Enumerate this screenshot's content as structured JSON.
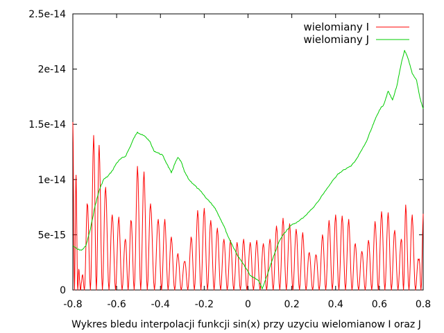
{
  "chart_data": {
    "type": "line",
    "title": "",
    "xlabel": "Wykres bledu interpolacji funkcji sin(x) przy uzyciu wielomianow I oraz J",
    "ylabel": "",
    "xlim": [
      -0.8,
      0.8
    ],
    "ylim": [
      0,
      2.5e-14
    ],
    "xticks": [
      "-0.8",
      "-0.6",
      "-0.4",
      "-0.2",
      "0",
      "0.2",
      "0.4",
      "0.6",
      "0.8"
    ],
    "yticks": [
      "0",
      "5e-15",
      "1e-14",
      "1.5e-14",
      "2e-14",
      "2.5e-14"
    ],
    "xtick_values": [
      -0.8,
      -0.6,
      -0.4,
      -0.2,
      0,
      0.2,
      0.4,
      0.6,
      0.8
    ],
    "ytick_values": [
      0,
      5e-15,
      1e-14,
      1.5e-14,
      2e-14,
      2.5e-14
    ],
    "grid": false,
    "legend_position": "top-right",
    "series": [
      {
        "name": "wielomiany I",
        "color": "#ff0000",
        "style": "oscillating",
        "peaks": [
          [
            -0.8,
            1.52e-14
          ],
          [
            -0.785,
            1.04e-14
          ],
          [
            -0.77,
            1e-15
          ],
          [
            -0.76,
            7e-16
          ],
          [
            -0.735,
            7.8e-15
          ],
          [
            -0.705,
            1.4e-14
          ],
          [
            -0.68,
            1.31e-14
          ],
          [
            -0.65,
            9.3e-15
          ],
          [
            -0.62,
            6.8e-15
          ],
          [
            -0.59,
            6.6e-15
          ],
          [
            -0.56,
            4.6e-15
          ],
          [
            -0.535,
            6.3e-15
          ],
          [
            -0.505,
            1.12e-14
          ],
          [
            -0.475,
            1.07e-14
          ],
          [
            -0.445,
            7.8e-15
          ],
          [
            -0.41,
            6.4e-15
          ],
          [
            -0.38,
            6.4e-15
          ],
          [
            -0.35,
            4.8e-15
          ],
          [
            -0.32,
            3.3e-15
          ],
          [
            -0.29,
            2.6e-15
          ],
          [
            -0.26,
            4.8e-15
          ],
          [
            -0.23,
            7.2e-15
          ],
          [
            -0.2,
            7.4e-15
          ],
          [
            -0.17,
            6.3e-15
          ],
          [
            -0.14,
            5.6e-15
          ],
          [
            -0.11,
            4.6e-15
          ],
          [
            -0.08,
            4.5e-15
          ],
          [
            -0.05,
            4.3e-15
          ],
          [
            -0.02,
            4.6e-15
          ],
          [
            0.01,
            4.3e-15
          ],
          [
            0.04,
            4.5e-15
          ],
          [
            0.07,
            4.2e-15
          ],
          [
            0.1,
            4.6e-15
          ],
          [
            0.13,
            5.8e-15
          ],
          [
            0.16,
            6.5e-15
          ],
          [
            0.19,
            6e-15
          ],
          [
            0.22,
            5.5e-15
          ],
          [
            0.25,
            5.2e-15
          ],
          [
            0.28,
            3.4e-15
          ],
          [
            0.31,
            3.2e-15
          ],
          [
            0.34,
            5e-15
          ],
          [
            0.37,
            6.3e-15
          ],
          [
            0.4,
            6.8e-15
          ],
          [
            0.43,
            6.7e-15
          ],
          [
            0.46,
            6.4e-15
          ],
          [
            0.49,
            4.2e-15
          ],
          [
            0.52,
            3.5e-15
          ],
          [
            0.55,
            4.5e-15
          ],
          [
            0.58,
            6.2e-15
          ],
          [
            0.61,
            7.1e-15
          ],
          [
            0.64,
            7e-15
          ],
          [
            0.67,
            5.4e-15
          ],
          [
            0.7,
            4.6e-15
          ],
          [
            0.72,
            7.7e-15
          ],
          [
            0.75,
            6.8e-15
          ],
          [
            0.78,
            2.7e-15
          ],
          [
            0.8,
            6.9e-15
          ]
        ]
      },
      {
        "name": "wielomiany J",
        "color": "#00cc00",
        "style": "smooth",
        "points": [
          [
            -0.8,
            4e-15
          ],
          [
            -0.78,
            3.7e-15
          ],
          [
            -0.76,
            3.6e-15
          ],
          [
            -0.74,
            4e-15
          ],
          [
            -0.72,
            5.5e-15
          ],
          [
            -0.7,
            7.5e-15
          ],
          [
            -0.68,
            9e-15
          ],
          [
            -0.66,
            1e-14
          ],
          [
            -0.64,
            1.03e-14
          ],
          [
            -0.62,
            1.08e-14
          ],
          [
            -0.6,
            1.15e-14
          ],
          [
            -0.58,
            1.19e-14
          ],
          [
            -0.56,
            1.21e-14
          ],
          [
            -0.54,
            1.29e-14
          ],
          [
            -0.52,
            1.38e-14
          ],
          [
            -0.505,
            1.43e-14
          ],
          [
            -0.49,
            1.41e-14
          ],
          [
            -0.47,
            1.39e-14
          ],
          [
            -0.45,
            1.35e-14
          ],
          [
            -0.43,
            1.26e-14
          ],
          [
            -0.41,
            1.24e-14
          ],
          [
            -0.39,
            1.22e-14
          ],
          [
            -0.37,
            1.14e-14
          ],
          [
            -0.35,
            1.06e-14
          ],
          [
            -0.335,
            1.14e-14
          ],
          [
            -0.32,
            1.2e-14
          ],
          [
            -0.305,
            1.16e-14
          ],
          [
            -0.29,
            1.07e-14
          ],
          [
            -0.27,
            1e-14
          ],
          [
            -0.25,
            9.6e-15
          ],
          [
            -0.23,
            9.2e-15
          ],
          [
            -0.21,
            8.8e-15
          ],
          [
            -0.19,
            8.3e-15
          ],
          [
            -0.17,
            7.9e-15
          ],
          [
            -0.15,
            7.4e-15
          ],
          [
            -0.13,
            6.6e-15
          ],
          [
            -0.11,
            5.8e-15
          ],
          [
            -0.09,
            4.8e-15
          ],
          [
            -0.07,
            4e-15
          ],
          [
            -0.05,
            3.2e-15
          ],
          [
            -0.03,
            2.6e-15
          ],
          [
            -0.01,
            2e-15
          ],
          [
            0.01,
            1.3e-15
          ],
          [
            0.03,
            1.1e-15
          ],
          [
            0.05,
            8e-16
          ],
          [
            0.065,
            1e-16
          ],
          [
            0.08,
            9e-16
          ],
          [
            0.1,
            2.1e-15
          ],
          [
            0.12,
            3.2e-15
          ],
          [
            0.14,
            4.3e-15
          ],
          [
            0.16,
            5e-15
          ],
          [
            0.18,
            5.5e-15
          ],
          [
            0.2,
            5.9e-15
          ],
          [
            0.23,
            6.2e-15
          ],
          [
            0.26,
            6.7e-15
          ],
          [
            0.29,
            7.3e-15
          ],
          [
            0.32,
            8e-15
          ],
          [
            0.35,
            8.9e-15
          ],
          [
            0.38,
            9.7e-15
          ],
          [
            0.41,
            1.05e-14
          ],
          [
            0.44,
            1.09e-14
          ],
          [
            0.47,
            1.12e-14
          ],
          [
            0.5,
            1.2e-14
          ],
          [
            0.52,
            1.27e-14
          ],
          [
            0.54,
            1.34e-14
          ],
          [
            0.56,
            1.44e-14
          ],
          [
            0.58,
            1.54e-14
          ],
          [
            0.6,
            1.63e-14
          ],
          [
            0.62,
            1.68e-14
          ],
          [
            0.64,
            1.8e-14
          ],
          [
            0.66,
            1.72e-14
          ],
          [
            0.68,
            1.85e-14
          ],
          [
            0.7,
            2.05e-14
          ],
          [
            0.715,
            2.17e-14
          ],
          [
            0.73,
            2.1e-14
          ],
          [
            0.75,
            1.96e-14
          ],
          [
            0.77,
            1.9e-14
          ],
          [
            0.785,
            1.74e-14
          ],
          [
            0.8,
            1.64e-14
          ]
        ]
      }
    ]
  }
}
